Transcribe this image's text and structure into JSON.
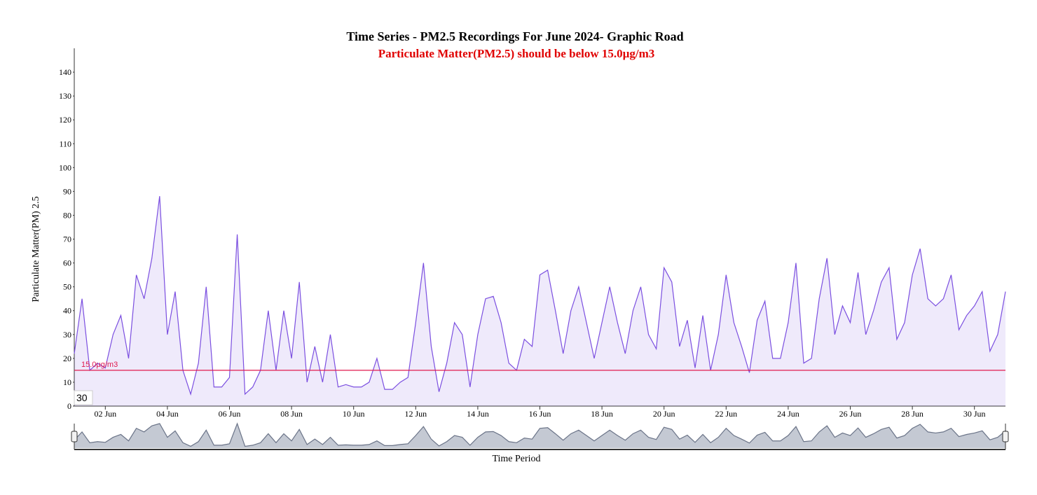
{
  "chart_data": {
    "type": "area",
    "title": "Time Series - PM2.5 Recordings For June 2024- Graphic Road",
    "subtitle": "Particulate Matter(PM2.5) should be below 15.0µg/m3",
    "y_label": "Particulate Matter(PM) 2.5",
    "x_label": "Time Period",
    "annotation": "30",
    "threshold": {
      "value": 15,
      "label": "15.0µg/m3",
      "color": "#e0194e"
    },
    "x": [
      1,
      1.25,
      1.5,
      1.75,
      2,
      2.25,
      2.5,
      2.75,
      3,
      3.25,
      3.5,
      3.75,
      4,
      4.25,
      4.5,
      4.75,
      5,
      5.25,
      5.5,
      5.75,
      6,
      6.25,
      6.5,
      6.75,
      7,
      7.25,
      7.5,
      7.75,
      8,
      8.25,
      8.5,
      8.75,
      9,
      9.25,
      9.5,
      9.75,
      10,
      10.25,
      10.5,
      10.75,
      11,
      11.25,
      11.5,
      11.75,
      12,
      12.25,
      12.5,
      12.75,
      13,
      13.25,
      13.5,
      13.75,
      14,
      14.25,
      14.5,
      14.75,
      15,
      15.25,
      15.5,
      15.75,
      16,
      16.25,
      16.5,
      16.75,
      17,
      17.25,
      17.5,
      17.75,
      18,
      18.25,
      18.5,
      18.75,
      19,
      19.25,
      19.5,
      19.75,
      20,
      20.25,
      20.5,
      20.75,
      21,
      21.25,
      21.5,
      21.75,
      22,
      22.25,
      22.5,
      22.75,
      23,
      23.25,
      23.5,
      23.75,
      24,
      24.25,
      24.5,
      24.75,
      25,
      25.25,
      25.5,
      25.75,
      26,
      26.25,
      26.5,
      26.75,
      27,
      27.25,
      27.5,
      27.75,
      28,
      28.25,
      28.5,
      28.75,
      29,
      29.25,
      29.5,
      29.75,
      30,
      30.25,
      30.5,
      30.75,
      31
    ],
    "series": [
      {
        "name": "PM2.5",
        "color": "#7b4fe0",
        "values": [
          22,
          45,
          15,
          18,
          16,
          30,
          38,
          20,
          55,
          45,
          62,
          88,
          30,
          48,
          15,
          5,
          18,
          50,
          8,
          8,
          12,
          72,
          5,
          8,
          15,
          40,
          15,
          40,
          20,
          52,
          10,
          25,
          10,
          30,
          8,
          9,
          8,
          8,
          10,
          20,
          7,
          7,
          10,
          12,
          35,
          60,
          25,
          6,
          18,
          35,
          30,
          8,
          30,
          45,
          46,
          35,
          18,
          15,
          28,
          25,
          55,
          57,
          40,
          22,
          40,
          50,
          35,
          20,
          35,
          50,
          35,
          22,
          40,
          50,
          30,
          24,
          58,
          52,
          25,
          36,
          16,
          38,
          15,
          30,
          55,
          35,
          25,
          14,
          36,
          44,
          20,
          20,
          35,
          60,
          18,
          20,
          45,
          62,
          30,
          42,
          35,
          56,
          30,
          40,
          52,
          58,
          28,
          35,
          55,
          66,
          45,
          42,
          45,
          55,
          32,
          38,
          42,
          48,
          23,
          30,
          48
        ]
      }
    ],
    "xlim": [
      1,
      31
    ],
    "xticks": [
      {
        "value": 2,
        "label": "02 Jun"
      },
      {
        "value": 4,
        "label": "04 Jun"
      },
      {
        "value": 6,
        "label": "06 Jun"
      },
      {
        "value": 8,
        "label": "08 Jun"
      },
      {
        "value": 10,
        "label": "10 Jun"
      },
      {
        "value": 12,
        "label": "12 Jun"
      },
      {
        "value": 14,
        "label": "14 Jun"
      },
      {
        "value": 16,
        "label": "16 Jun"
      },
      {
        "value": 18,
        "label": "18 Jun"
      },
      {
        "value": 20,
        "label": "20 Jun"
      },
      {
        "value": 22,
        "label": "22 Jun"
      },
      {
        "value": 24,
        "label": "24 Jun"
      },
      {
        "value": 26,
        "label": "26 Jun"
      },
      {
        "value": 28,
        "label": "28 Jun"
      },
      {
        "value": 30,
        "label": "30 Jun"
      }
    ],
    "ylim": [
      0,
      150
    ],
    "yticks": [
      0,
      10,
      20,
      30,
      40,
      50,
      60,
      70,
      80,
      90,
      100,
      110,
      120,
      130,
      140
    ],
    "grid": false
  }
}
